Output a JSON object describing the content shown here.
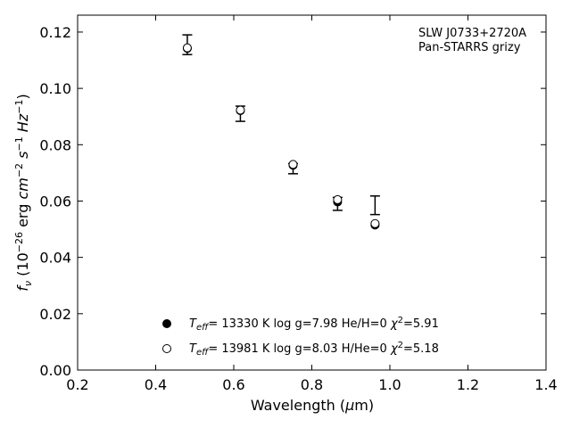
{
  "chart_data": {
    "type": "scatter",
    "xlabel": {
      "pre": "Wavelength (",
      "mu": "μ",
      "post": "m)"
    },
    "ylabel": "f_ν (10^-26 erg cm^-2 s^-1 Hz^-1)",
    "xlim": [
      0.2,
      1.4
    ],
    "ylim": [
      0.0,
      0.126
    ],
    "xticks": [
      "0.2",
      "0.4",
      "0.6",
      "0.8",
      "1.0",
      "1.2",
      "1.4"
    ],
    "yticks": [
      "0.00",
      "0.02",
      "0.04",
      "0.06",
      "0.08",
      "0.10",
      "0.12"
    ],
    "annotation": [
      "SLW J0733+2720A",
      "Pan-STARRS grizy"
    ],
    "observed": {
      "x": [
        0.481,
        0.617,
        0.752,
        0.866,
        0.962
      ],
      "y": [
        0.1155,
        0.091,
        0.0715,
        0.059,
        0.0585
      ],
      "yerr": [
        0.0035,
        0.0027,
        0.0018,
        0.0023,
        0.0033
      ]
    },
    "series": [
      {
        "name": "T_eff= 13330 K  log g=7.98  He/H=0  χ²=5.91",
        "marker": "filled-circle",
        "x": [
          0.481,
          0.617,
          0.752,
          0.866,
          0.962
        ],
        "y": [
          0.1142,
          0.0921,
          0.0727,
          0.0597,
          0.0515
        ]
      },
      {
        "name": "T_eff= 13981 K  log g=8.03  H/He=0  χ²=5.18",
        "marker": "open-circle",
        "x": [
          0.481,
          0.617,
          0.752,
          0.866,
          0.962
        ],
        "y": [
          0.1144,
          0.0923,
          0.073,
          0.0605,
          0.052
        ]
      }
    ],
    "legend": [
      {
        "teff": "13330 K",
        "logg": "log g=7.98",
        "comp": "He/H=0",
        "chi": "=5.91"
      },
      {
        "teff": "13981 K",
        "logg": "log g=8.03",
        "comp": "H/He=0",
        "chi": "=5.18"
      }
    ],
    "legend_placement": "lower-center",
    "grid": false
  }
}
